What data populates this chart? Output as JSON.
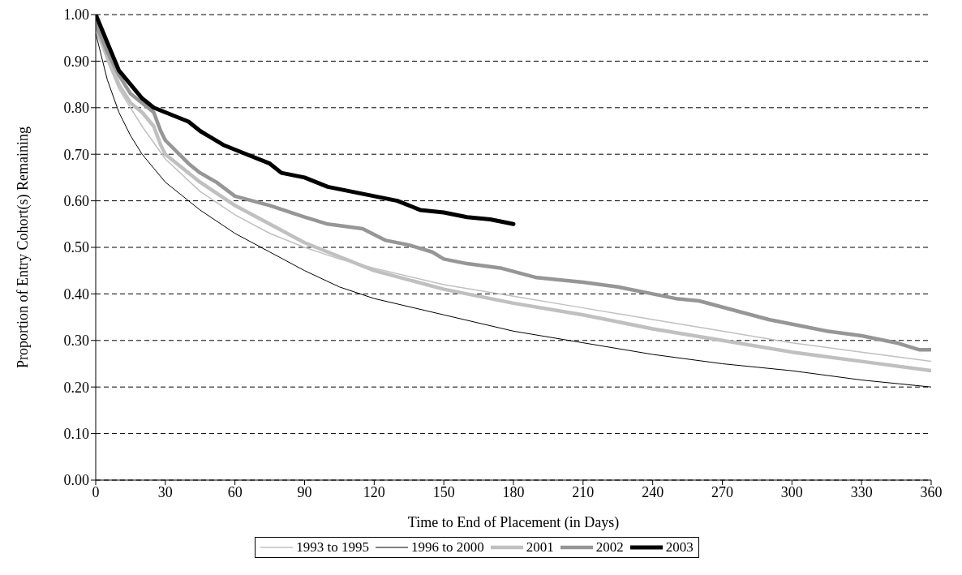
{
  "chart_data": {
    "type": "line",
    "xlabel": "Time to End of Placement (in Days)",
    "ylabel": "Proportion of Entry Cohort(s) Remaining",
    "xlim": [
      0,
      360
    ],
    "xticks": [
      0,
      30,
      60,
      90,
      120,
      150,
      180,
      210,
      240,
      270,
      300,
      330,
      360
    ],
    "ylim": [
      0,
      1
    ],
    "yticks": [
      {
        "value": 0,
        "label": "0.00"
      },
      {
        "value": 0.1,
        "label": "0.10"
      },
      {
        "value": 0.2,
        "label": "0.20"
      },
      {
        "value": 0.3,
        "label": "0.30"
      },
      {
        "value": 0.4,
        "label": "0.40"
      },
      {
        "value": 0.5,
        "label": "0.50"
      },
      {
        "value": 0.6,
        "label": "0.60"
      },
      {
        "value": 0.7,
        "label": "0.70"
      },
      {
        "value": 0.8,
        "label": "0.80"
      },
      {
        "value": 0.9,
        "label": "0.90"
      },
      {
        "value": 1,
        "label": "1.00"
      }
    ],
    "grid": "y",
    "legend": "bottom",
    "marker": "none",
    "line_style": "solid",
    "series": [
      {
        "name": "1993 to 1995",
        "color": "#c0c0c0",
        "x": [
          0,
          5,
          10,
          15,
          20,
          30,
          45,
          60,
          75,
          90,
          105,
          120,
          150,
          180,
          210,
          240,
          270,
          300,
          330,
          360
        ],
        "values": [
          0.97,
          0.9,
          0.84,
          0.8,
          0.76,
          0.69,
          0.62,
          0.57,
          0.53,
          0.5,
          0.475,
          0.455,
          0.42,
          0.395,
          0.37,
          0.345,
          0.32,
          0.295,
          0.275,
          0.255
        ]
      },
      {
        "name": "1996 to 2000",
        "color": "#000000",
        "x": [
          0,
          5,
          10,
          15,
          20,
          25,
          30,
          45,
          60,
          75,
          90,
          105,
          120,
          150,
          180,
          210,
          240,
          270,
          300,
          330,
          360
        ],
        "values": [
          0.96,
          0.86,
          0.79,
          0.74,
          0.7,
          0.67,
          0.64,
          0.58,
          0.53,
          0.49,
          0.45,
          0.415,
          0.39,
          0.355,
          0.32,
          0.295,
          0.27,
          0.25,
          0.235,
          0.215,
          0.2
        ]
      },
      {
        "name": "2001",
        "color": "#c0c0c0",
        "x": [
          0,
          5,
          10,
          15,
          20,
          25,
          28,
          30,
          45,
          60,
          75,
          90,
          105,
          120,
          150,
          180,
          210,
          240,
          270,
          300,
          330,
          360
        ],
        "values": [
          0.97,
          0.91,
          0.85,
          0.81,
          0.79,
          0.76,
          0.72,
          0.7,
          0.64,
          0.59,
          0.55,
          0.51,
          0.48,
          0.45,
          0.41,
          0.38,
          0.355,
          0.325,
          0.3,
          0.275,
          0.255,
          0.235
        ]
      },
      {
        "name": "2002",
        "color": "#969696",
        "x": [
          0,
          5,
          10,
          15,
          20,
          25,
          28,
          30,
          40,
          45,
          52,
          60,
          75,
          90,
          100,
          115,
          125,
          135,
          145,
          150,
          160,
          175,
          190,
          210,
          225,
          240,
          250,
          260,
          275,
          290,
          305,
          315,
          330,
          345,
          355,
          360
        ],
        "values": [
          0.98,
          0.92,
          0.87,
          0.83,
          0.81,
          0.79,
          0.75,
          0.73,
          0.68,
          0.66,
          0.64,
          0.61,
          0.59,
          0.565,
          0.55,
          0.54,
          0.515,
          0.505,
          0.49,
          0.475,
          0.465,
          0.455,
          0.435,
          0.425,
          0.415,
          0.4,
          0.39,
          0.385,
          0.365,
          0.345,
          0.33,
          0.32,
          0.31,
          0.295,
          0.28,
          0.28
        ]
      },
      {
        "name": "2003",
        "color": "#000000",
        "x": [
          0,
          5,
          10,
          15,
          20,
          25,
          30,
          40,
          45,
          55,
          65,
          75,
          80,
          90,
          100,
          110,
          120,
          130,
          140,
          150,
          160,
          170,
          180
        ],
        "values": [
          1,
          0.94,
          0.88,
          0.85,
          0.82,
          0.8,
          0.79,
          0.77,
          0.75,
          0.72,
          0.7,
          0.68,
          0.66,
          0.65,
          0.63,
          0.62,
          0.61,
          0.6,
          0.58,
          0.575,
          0.565,
          0.56,
          0.55
        ]
      }
    ]
  }
}
